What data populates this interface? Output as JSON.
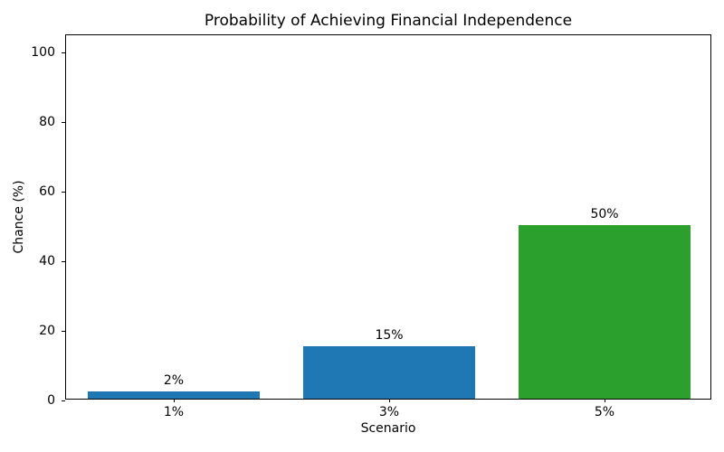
{
  "chart_data": {
    "type": "bar",
    "title": "Probability of Achieving Financial Independence",
    "xlabel": "Scenario",
    "ylabel": "Chance (%)",
    "categories": [
      "1%",
      "3%",
      "5%"
    ],
    "values": [
      2,
      15,
      50
    ],
    "bar_labels": [
      "2%",
      "15%",
      "50%"
    ],
    "bar_colors": [
      "#1f77b4",
      "#1f77b4",
      "#2ca02c"
    ],
    "yticks": [
      0,
      20,
      40,
      60,
      80,
      100
    ],
    "ylim": [
      0,
      105
    ],
    "bar_width_fraction": 0.8,
    "grid": false,
    "legend": "none",
    "background_color": "#ffffff",
    "text_color": "#000000",
    "spine_color": "#000000"
  }
}
